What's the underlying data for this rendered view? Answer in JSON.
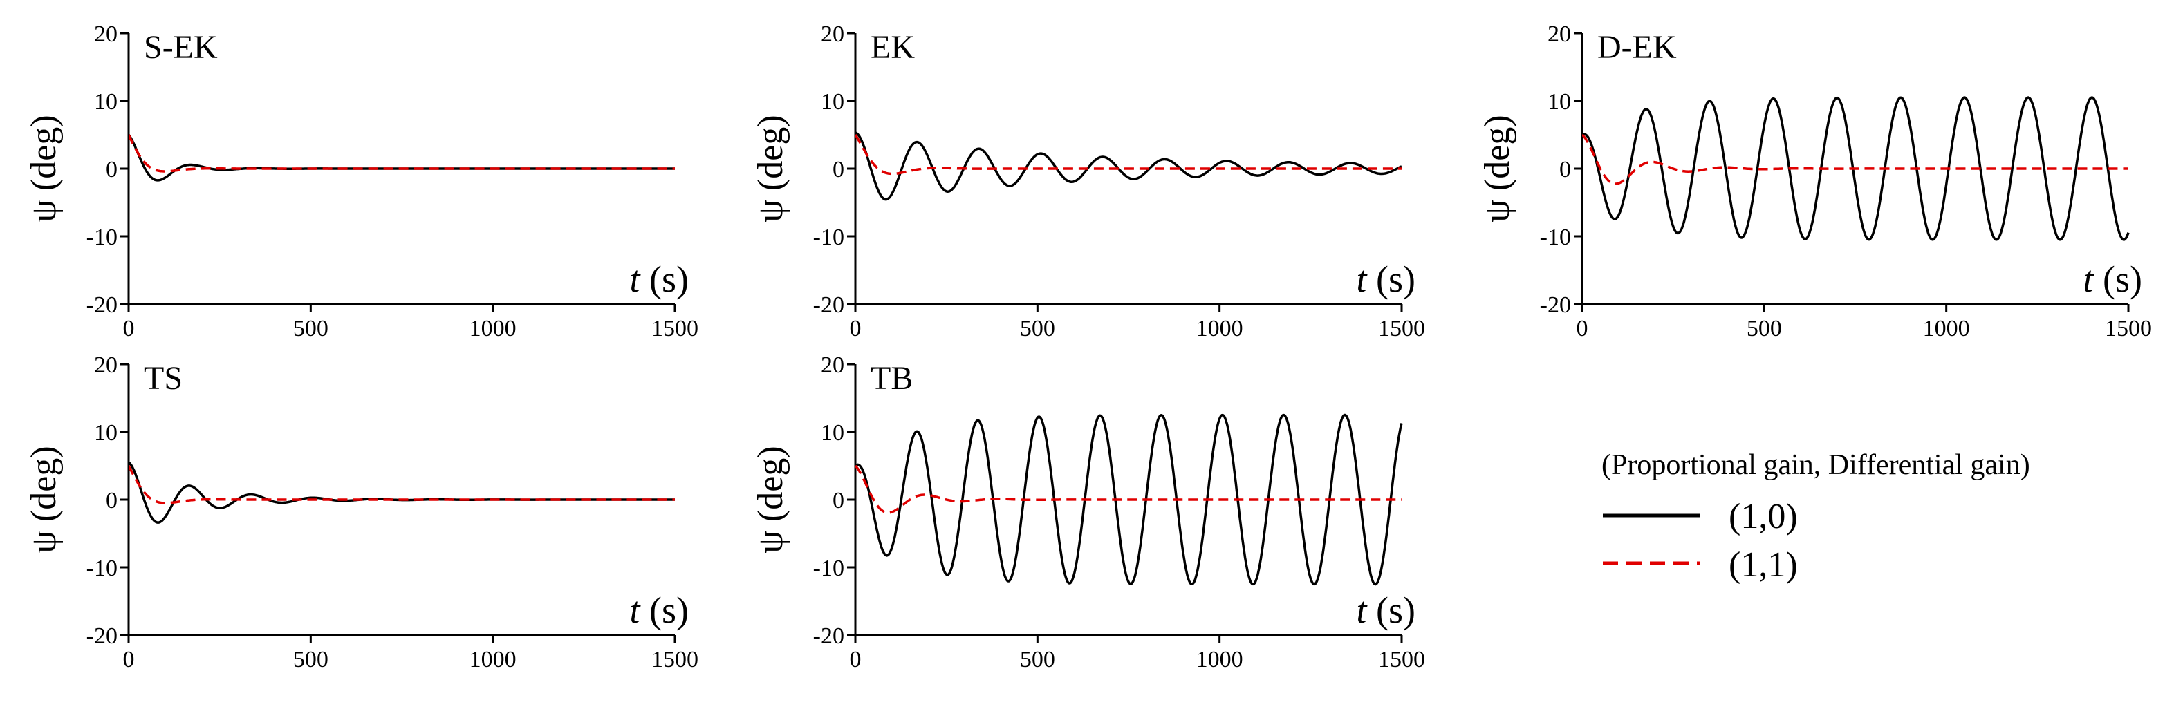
{
  "chart_data": [
    {
      "type": "line",
      "title": "S-EK",
      "xlabel_var": "t",
      "xlabel_unit": "(s)",
      "ylabel": "ψ (deg)",
      "xlim": [
        0,
        1500
      ],
      "ylim": [
        -20,
        20
      ],
      "xticks": [
        "0",
        "500",
        "1000",
        "1500"
      ],
      "yticks": [
        "20",
        "10",
        "0",
        "-10",
        "-20"
      ],
      "series": [
        {
          "name": "(1,0)",
          "color": "#000000",
          "style": "solid",
          "amplitude": 5,
          "decay_time_s": 80,
          "period_s": 180,
          "growth_amplitude": 0
        },
        {
          "name": "(1,1)",
          "color": "#e00000",
          "style": "dashed",
          "amplitude": 5,
          "decay_time_s": 45,
          "period_s": 260,
          "growth_amplitude": 0
        }
      ]
    },
    {
      "type": "line",
      "title": "EK",
      "xlabel_var": "t",
      "xlabel_unit": "(s)",
      "ylabel": "ψ (deg)",
      "xlim": [
        0,
        1500
      ],
      "ylim": [
        -20,
        20
      ],
      "xticks": [
        "0",
        "500",
        "1000",
        "1500"
      ],
      "yticks": [
        "20",
        "10",
        "0",
        "-10",
        "-20"
      ],
      "series": [
        {
          "name": "(1,0)",
          "color": "#000000",
          "style": "solid",
          "amplitude": 5.3,
          "decay_time_s": 500,
          "period_s": 170,
          "growth_amplitude": 0.5
        },
        {
          "name": "(1,1)",
          "color": "#e00000",
          "style": "dashed",
          "amplitude": 5,
          "decay_time_s": 60,
          "period_s": 250,
          "growth_amplitude": 0
        }
      ]
    },
    {
      "type": "line",
      "title": "D-EK",
      "xlabel_var": "t",
      "xlabel_unit": "(s)",
      "ylabel": "ψ (deg)",
      "xlim": [
        0,
        1500
      ],
      "ylim": [
        -20,
        20
      ],
      "xticks": [
        "0",
        "500",
        "1000",
        "1500"
      ],
      "yticks": [
        "20",
        "10",
        "0",
        "-10",
        "-20"
      ],
      "series": [
        {
          "name": "(1,0)",
          "color": "#000000",
          "style": "solid",
          "amplitude": 5,
          "decay_time_s": 150,
          "period_s": 175,
          "growth_amplitude": 10.5
        },
        {
          "name": "(1,1)",
          "color": "#e00000",
          "style": "dashed",
          "amplitude": 5,
          "decay_time_s": 120,
          "period_s": 200,
          "growth_amplitude": 0
        }
      ]
    },
    {
      "type": "line",
      "title": "TS",
      "xlabel_var": "t",
      "xlabel_unit": "(s)",
      "ylabel": "ψ (deg)",
      "xlim": [
        0,
        1500
      ],
      "ylim": [
        -20,
        20
      ],
      "xticks": [
        "0",
        "500",
        "1000",
        "1500"
      ],
      "yticks": [
        "20",
        "10",
        "0",
        "-10",
        "-20"
      ],
      "series": [
        {
          "name": "(1,0)",
          "color": "#000000",
          "style": "solid",
          "amplitude": 5.5,
          "decay_time_s": 170,
          "period_s": 170,
          "growth_amplitude": 0
        },
        {
          "name": "(1,1)",
          "color": "#e00000",
          "style": "dashed",
          "amplitude": 5,
          "decay_time_s": 50,
          "period_s": 260,
          "growth_amplitude": 0
        }
      ]
    },
    {
      "type": "line",
      "title": "TB",
      "xlabel_var": "t",
      "xlabel_unit": "(s)",
      "ylabel": "ψ (deg)",
      "xlim": [
        0,
        1500
      ],
      "ylim": [
        -20,
        20
      ],
      "xticks": [
        "0",
        "500",
        "1000",
        "1500"
      ],
      "yticks": [
        "20",
        "10",
        "0",
        "-10",
        "-20"
      ],
      "series": [
        {
          "name": "(1,0)",
          "color": "#000000",
          "style": "solid",
          "amplitude": 5,
          "decay_time_s": 150,
          "period_s": 168,
          "growth_amplitude": 12.5
        },
        {
          "name": "(1,1)",
          "color": "#e00000",
          "style": "dashed",
          "amplitude": 5,
          "decay_time_s": 100,
          "period_s": 200,
          "growth_amplitude": 0
        }
      ]
    }
  ],
  "legend": {
    "title": "(Proportional gain, Differential gain)",
    "entries": [
      {
        "label": "(1,0)",
        "color": "#000000",
        "style": "solid"
      },
      {
        "label": "(1,1)",
        "color": "#e00000",
        "style": "dashed"
      }
    ]
  }
}
